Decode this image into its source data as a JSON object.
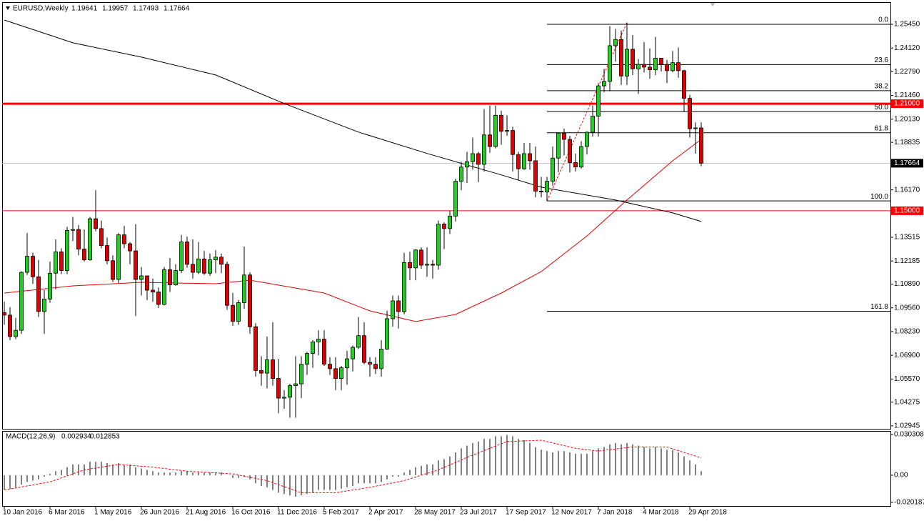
{
  "chart_data": [
    {
      "type": "candlestick",
      "title": "EURUSD,Weekly",
      "open": [
        1.093,
        1.0915,
        1.0795,
        1.083,
        1.1155,
        1.1245,
        1.113,
        1.0935,
        1.1005,
        1.115,
        1.127,
        1.1165,
        1.139,
        1.1395,
        1.1285,
        1.1225,
        1.1455,
        1.14,
        1.1305,
        1.122,
        1.1115,
        1.1365,
        1.1315,
        1.1275,
        1.1115,
        1.1135,
        1.1055,
        1.1045,
        1.0975,
        1.117,
        1.1085,
        1.1165,
        1.1325,
        1.12,
        1.1155,
        1.123,
        1.115,
        1.1225,
        1.124,
        1.12,
        1.097,
        1.088,
        1.0985,
        1.114,
        1.085,
        1.0605,
        1.059,
        1.0665,
        1.056,
        1.045,
        1.0455,
        1.052,
        1.053,
        1.064,
        1.07,
        1.0765,
        1.078,
        1.064,
        1.0615,
        1.056,
        1.062,
        1.067,
        1.0735,
        1.08,
        1.065,
        1.064,
        1.0615,
        1.0725,
        1.0895,
        1.0995,
        1.0935,
        1.121,
        1.118,
        1.128,
        1.1195,
        1.12,
        1.1195,
        1.1425,
        1.14,
        1.147,
        1.1665,
        1.1745,
        1.1775,
        1.182,
        1.176,
        1.1925,
        1.186,
        1.2035,
        1.1945,
        1.195,
        1.1815,
        1.1735,
        1.182,
        1.178,
        1.161,
        1.1605,
        1.1665,
        1.1795,
        1.1935,
        1.19,
        1.177,
        1.1745,
        1.186,
        1.194,
        1.203,
        1.22,
        1.2225,
        1.2425,
        1.246,
        1.2255,
        1.2405,
        1.2295,
        1.232,
        1.2305,
        1.229,
        1.2355,
        1.232,
        1.2285,
        1.233,
        1.2285,
        1.213,
        1.196,
        1.19641
      ],
      "high": [
        1.099,
        1.096,
        1.09,
        1.116,
        1.1375,
        1.1265,
        1.1225,
        1.1055,
        1.1215,
        1.134,
        1.129,
        1.141,
        1.1465,
        1.142,
        1.1395,
        1.1465,
        1.1615,
        1.1445,
        1.135,
        1.125,
        1.1375,
        1.1415,
        1.1325,
        1.1425,
        1.1185,
        1.112,
        1.112,
        1.107,
        1.1185,
        1.1235,
        1.12,
        1.1365,
        1.1355,
        1.134,
        1.1325,
        1.1275,
        1.126,
        1.128,
        1.126,
        1.1215,
        1.104,
        1.1,
        1.13,
        1.1155,
        1.087,
        1.0685,
        1.0795,
        1.0875,
        1.067,
        1.0495,
        1.053,
        1.0685,
        1.0685,
        1.071,
        1.0775,
        1.083,
        1.083,
        1.068,
        1.068,
        1.063,
        1.0715,
        1.0745,
        1.0905,
        1.0875,
        1.068,
        1.068,
        1.0775,
        1.094,
        1.1025,
        1.1025,
        1.1265,
        1.127,
        1.1285,
        1.1295,
        1.1295,
        1.1225,
        1.1445,
        1.1435,
        1.15,
        1.168,
        1.1775,
        1.183,
        1.191,
        1.183,
        1.207,
        1.209,
        1.209,
        1.206,
        1.2035,
        1.197,
        1.183,
        1.188,
        1.188,
        1.186,
        1.169,
        1.169,
        1.186,
        1.194,
        1.196,
        1.192,
        1.182,
        1.189,
        1.1945,
        1.209,
        1.2215,
        1.2295,
        1.2535,
        1.252,
        1.251,
        1.2555,
        1.2485,
        1.235,
        1.2445,
        1.241,
        1.2475,
        1.2355,
        1.2345,
        1.2395,
        1.2415,
        1.229,
        1.215,
        1.1995,
        1.19957
      ],
      "low": [
        1.086,
        1.0775,
        1.078,
        1.081,
        1.114,
        1.109,
        1.0905,
        1.081,
        1.0985,
        1.106,
        1.1145,
        1.1145,
        1.133,
        1.125,
        1.1215,
        1.122,
        1.1385,
        1.129,
        1.12,
        1.11,
        1.1095,
        1.129,
        1.12,
        1.091,
        1.1025,
        1.1,
        1.099,
        1.0955,
        1.097,
        1.1045,
        1.108,
        1.115,
        1.118,
        1.112,
        1.1145,
        1.114,
        1.1135,
        1.115,
        1.115,
        1.0945,
        1.0855,
        1.086,
        1.095,
        1.081,
        1.057,
        1.052,
        1.0505,
        1.052,
        1.0365,
        1.039,
        1.034,
        1.034,
        1.045,
        1.058,
        1.062,
        1.069,
        1.063,
        1.058,
        1.0495,
        1.0495,
        1.0525,
        1.06,
        1.0725,
        1.064,
        1.057,
        1.0585,
        1.057,
        1.072,
        1.085,
        1.084,
        1.092,
        1.111,
        1.111,
        1.1175,
        1.113,
        1.112,
        1.117,
        1.1285,
        1.137,
        1.144,
        1.1615,
        1.1655,
        1.173,
        1.166,
        1.172,
        1.1825,
        1.185,
        1.187,
        1.192,
        1.172,
        1.167,
        1.173,
        1.173,
        1.1575,
        1.1575,
        1.1555,
        1.164,
        1.1715,
        1.181,
        1.1715,
        1.172,
        1.1735,
        1.1815,
        1.1915,
        1.1915,
        1.2165,
        1.217,
        1.2335,
        1.2205,
        1.2205,
        1.226,
        1.2155,
        1.2275,
        1.224,
        1.226,
        1.228,
        1.2215,
        1.2275,
        1.2245,
        1.2055,
        1.191,
        1.182,
        1.17493
      ],
      "close": [
        1.0915,
        1.0795,
        1.083,
        1.1155,
        1.1245,
        1.113,
        1.0935,
        1.1005,
        1.115,
        1.127,
        1.1165,
        1.139,
        1.1395,
        1.1285,
        1.1225,
        1.1455,
        1.14,
        1.1305,
        1.122,
        1.1115,
        1.1365,
        1.1315,
        1.1275,
        1.1115,
        1.1135,
        1.1055,
        1.1045,
        1.0975,
        1.117,
        1.1085,
        1.1165,
        1.1325,
        1.12,
        1.1155,
        1.123,
        1.115,
        1.1225,
        1.124,
        1.12,
        1.097,
        1.088,
        1.0985,
        1.114,
        1.085,
        1.0605,
        1.059,
        1.0665,
        1.056,
        1.045,
        1.0455,
        1.052,
        1.053,
        1.064,
        1.07,
        1.0765,
        1.078,
        1.064,
        1.0615,
        1.056,
        1.062,
        1.067,
        1.0735,
        1.08,
        1.065,
        1.064,
        1.0615,
        1.0725,
        1.0895,
        1.0995,
        1.0935,
        1.121,
        1.118,
        1.128,
        1.1195,
        1.12,
        1.1195,
        1.1425,
        1.14,
        1.147,
        1.1665,
        1.1745,
        1.1775,
        1.182,
        1.176,
        1.1925,
        1.186,
        1.2035,
        1.1945,
        1.195,
        1.1815,
        1.1735,
        1.182,
        1.178,
        1.161,
        1.1605,
        1.1665,
        1.1795,
        1.1935,
        1.19,
        1.177,
        1.1745,
        1.186,
        1.194,
        1.203,
        1.22,
        1.2225,
        1.2425,
        1.246,
        1.2255,
        1.2405,
        1.2295,
        1.232,
        1.2305,
        1.229,
        1.2355,
        1.232,
        1.2285,
        1.233,
        1.2285,
        1.213,
        1.196,
        1.19641,
        1.17664
      ],
      "up_color": "#22cc22",
      "down_color": "#dd0000",
      "xlim": [
        -0.375,
        155.125
      ],
      "ylim": [
        1.0278,
        1.2669
      ],
      "yticks": [
        {
          "value": 1.2545,
          "label": "1.25450"
        },
        {
          "value": 1.2412,
          "label": "1.24120"
        },
        {
          "value": 1.2279,
          "label": "1.22790"
        },
        {
          "value": 1.2146,
          "label": "1.21460"
        },
        {
          "value": 1.2013,
          "label": "1.20130"
        },
        1.18835,
        {
          "value": 1.1617,
          "label": "1.16170"
        },
        1.13515,
        1.12185,
        {
          "value": 1.1089,
          "label": "1.10890"
        },
        {
          "value": 1.0956,
          "label": "1.09560"
        },
        {
          "value": 1.0823,
          "label": "1.08230"
        },
        {
          "value": 1.069,
          "label": "1.06900"
        },
        {
          "value": 1.0557,
          "label": "1.05570"
        },
        1.04275,
        1.02945
      ],
      "moving_averages": [
        {
          "color": "#000000",
          "x": [
            0,
            12,
            24,
            37,
            49,
            62,
            74,
            87,
            94,
            107,
            117,
            122
          ],
          "values": [
            1.2569,
            1.2441,
            1.2361,
            1.2261,
            1.2101,
            1.1941,
            1.1821,
            1.1701,
            1.1632,
            1.156,
            1.1488,
            1.144
          ]
        },
        {
          "color": "#e00000",
          "x": [
            0,
            12,
            24,
            37,
            43,
            56,
            64,
            72,
            79,
            87,
            94,
            102,
            109,
            117,
            122
          ],
          "values": [
            1.1039,
            1.1079,
            1.1099,
            1.1091,
            1.1111,
            1.1039,
            1.0939,
            1.0879,
            1.0919,
            1.1039,
            1.1159,
            1.1359,
            1.156,
            1.178,
            1.19
          ]
        }
      ],
      "horizontal_lines": [
        {
          "value": 1.21,
          "label": "1.21000",
          "color": "#ff0000"
        },
        {
          "value": 1.15,
          "label": "1.15000",
          "color": "#ff0000"
        }
      ],
      "current_price_line_color": "#c0c0c0",
      "fibonacci": {
        "x_from": 95,
        "color": "#000000",
        "levels": [
          {
            "value": 1.2545,
            "label": "0.0"
          },
          {
            "value": 1.2319,
            "label": "23.6"
          },
          {
            "value": 1.2173,
            "label": "38.2"
          },
          {
            "value": 1.2055,
            "label": "50.0"
          },
          {
            "value": 1.1937,
            "label": "61.8"
          },
          {
            "value": 1.1555,
            "label": "100.0"
          },
          {
            "value": 1.0937,
            "label": "161.8"
          }
        ]
      },
      "trendline": {
        "color": "#ff0000",
        "x": [
          95,
          109
        ],
        "values": [
          1.1555,
          1.2555
        ]
      }
    },
    {
      "type": "macd",
      "title": "MACD(12,26,9)",
      "color": "#000000",
      "values": [
        -0.011,
        -0.01,
        -0.009,
        -0.007,
        -0.005,
        -0.004,
        -0.003,
        -0.001,
        0.001,
        0.003,
        0.004,
        0.006,
        0.008,
        0.008,
        0.008,
        0.01,
        0.01,
        0.01,
        0.009,
        0.008,
        0.009,
        0.008,
        0.008,
        0.006,
        0.005,
        0.004,
        0.003,
        0.002,
        0.002,
        0.002,
        0.002,
        0.003,
        0.003,
        0.002,
        0.002,
        0.002,
        0.002,
        0.002,
        0.002,
        0.0,
        -0.002,
        -0.002,
        -0.001,
        -0.003,
        -0.006,
        -0.008,
        -0.009,
        -0.011,
        -0.013,
        -0.014,
        -0.015,
        -0.016,
        -0.015,
        -0.014,
        -0.013,
        -0.011,
        -0.011,
        -0.011,
        -0.011,
        -0.01,
        -0.009,
        -0.008,
        -0.006,
        -0.006,
        -0.006,
        -0.006,
        -0.005,
        -0.003,
        -0.001,
        -0.001,
        0.002,
        0.004,
        0.006,
        0.007,
        0.008,
        0.008,
        0.011,
        0.012,
        0.014,
        0.017,
        0.02,
        0.022,
        0.024,
        0.025,
        0.027,
        0.027,
        0.029,
        0.029,
        0.03,
        0.029,
        0.027,
        0.026,
        0.024,
        0.021,
        0.019,
        0.018,
        0.017,
        0.018,
        0.018,
        0.017,
        0.016,
        0.016,
        0.016,
        0.018,
        0.02,
        0.021,
        0.023,
        0.024,
        0.023,
        0.024,
        0.023,
        0.022,
        0.021,
        0.02,
        0.021,
        0.02,
        0.019,
        0.019,
        0.017,
        0.014,
        0.011,
        0.008,
        0.002934
      ],
      "signal": {
        "color": "#ff0000",
        "x": [
          0,
          8,
          14,
          20,
          26,
          32,
          40,
          46,
          52,
          58,
          64,
          70,
          76,
          82,
          88,
          94,
          100,
          104,
          110,
          116,
          122
        ],
        "values": [
          -0.011,
          -0.005,
          0.004,
          0.008,
          0.006,
          0.003,
          0.001,
          -0.004,
          -0.013,
          -0.013,
          -0.009,
          -0.004,
          0.004,
          0.015,
          0.025,
          0.026,
          0.02,
          0.018,
          0.021,
          0.021,
          0.012853
        ]
      },
      "xlim": [
        -0.375,
        155.125
      ],
      "ylim": [
        -0.0229,
        0.0324
      ],
      "yticks": [
        0.030308,
        {
          "value": 0,
          "label": "0.00"
        },
        -0.020187
      ],
      "xticks": [
        {
          "value": 0,
          "label": "10 Jan 2016"
        },
        {
          "value": 8,
          "label": "6 Mar 2016"
        },
        {
          "value": 16,
          "label": "1 May 2016"
        },
        {
          "value": 24,
          "label": "26 Jun 2016"
        },
        {
          "value": 32,
          "label": "21 Aug 2016"
        },
        {
          "value": 40,
          "label": "16 Oct 2016"
        },
        {
          "value": 48,
          "label": "11 Dec 2016"
        },
        {
          "value": 56,
          "label": "5 Feb 2017"
        },
        {
          "value": 64,
          "label": "2 Apr 2017"
        },
        {
          "value": 72,
          "label": "28 May 2017"
        },
        {
          "value": 80,
          "label": "23 Jul 2017"
        },
        {
          "value": 88,
          "label": "17 Sep 2017"
        },
        {
          "value": 96,
          "label": "12 Nov 2017"
        },
        {
          "value": 104,
          "label": "7 Jan 2018"
        },
        {
          "value": 112,
          "label": "4 Mar 2018"
        },
        {
          "value": 120,
          "label": "29 Apr 2018"
        }
      ]
    }
  ]
}
